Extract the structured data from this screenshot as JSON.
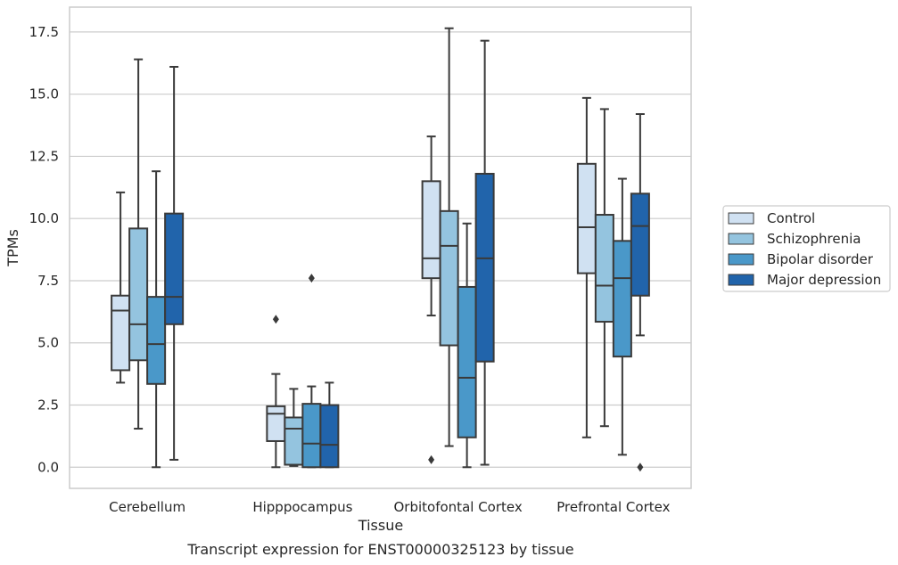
{
  "chart_data": {
    "type": "box",
    "xlabel": "Tissue",
    "ylabel": "TPMs",
    "caption": "Transcript expression for ENST00000325123 by tissue",
    "categories": [
      "Cerebellum",
      "Hipppocampus",
      "Orbitofontal Cortex",
      "Prefrontal Cortex"
    ],
    "ylim": [
      -0.85,
      18.5
    ],
    "yticks": [
      "0.0",
      "2.5",
      "5.0",
      "7.5",
      "10.0",
      "12.5",
      "15.0",
      "17.5"
    ],
    "ytick_values": [
      0,
      2.5,
      5,
      7.5,
      10,
      12.5,
      15,
      17.5
    ],
    "grid": true,
    "legend_position": "right",
    "series": [
      {
        "name": "Control",
        "color": "#d0e1f2",
        "boxes": [
          {
            "whislo": 3.4,
            "q1": 3.9,
            "med": 6.3,
            "q3": 6.9,
            "whishi": 11.05,
            "fliers": []
          },
          {
            "whislo": 0.0,
            "q1": 1.05,
            "med": 2.15,
            "q3": 2.45,
            "whishi": 3.75,
            "fliers": [
              5.95
            ]
          },
          {
            "whislo": 6.1,
            "q1": 7.6,
            "med": 8.4,
            "q3": 11.5,
            "whishi": 13.3,
            "fliers": [
              0.3
            ]
          },
          {
            "whislo": 1.2,
            "q1": 7.8,
            "med": 9.65,
            "q3": 12.2,
            "whishi": 14.85,
            "fliers": []
          }
        ]
      },
      {
        "name": "Schizophrenia",
        "color": "#94c4df",
        "boxes": [
          {
            "whislo": 1.55,
            "q1": 4.3,
            "med": 5.75,
            "q3": 9.6,
            "whishi": 16.4,
            "fliers": []
          },
          {
            "whislo": 0.05,
            "q1": 0.1,
            "med": 1.55,
            "q3": 2.0,
            "whishi": 3.15,
            "fliers": []
          },
          {
            "whislo": 0.85,
            "q1": 4.9,
            "med": 8.9,
            "q3": 10.3,
            "whishi": 17.65,
            "fliers": []
          },
          {
            "whislo": 1.65,
            "q1": 5.85,
            "med": 7.3,
            "q3": 10.15,
            "whishi": 14.4,
            "fliers": []
          }
        ]
      },
      {
        "name": "Bipolar disorder",
        "color": "#4a98c9",
        "boxes": [
          {
            "whislo": 0.0,
            "q1": 3.35,
            "med": 4.95,
            "q3": 6.85,
            "whishi": 11.9,
            "fliers": []
          },
          {
            "whislo": 0.0,
            "q1": 0.0,
            "med": 0.95,
            "q3": 2.55,
            "whishi": 3.25,
            "fliers": [
              7.6
            ]
          },
          {
            "whislo": 0.0,
            "q1": 1.2,
            "med": 3.6,
            "q3": 7.25,
            "whishi": 9.8,
            "fliers": []
          },
          {
            "whislo": 0.5,
            "q1": 4.45,
            "med": 7.6,
            "q3": 9.1,
            "whishi": 11.6,
            "fliers": []
          }
        ]
      },
      {
        "name": "Major depression",
        "color": "#2164ab",
        "boxes": [
          {
            "whislo": 0.3,
            "q1": 5.75,
            "med": 6.85,
            "q3": 10.2,
            "whishi": 16.1,
            "fliers": []
          },
          {
            "whislo": 0.0,
            "q1": 0.0,
            "med": 0.9,
            "q3": 2.5,
            "whishi": 3.4,
            "fliers": []
          },
          {
            "whislo": 0.1,
            "q1": 4.25,
            "med": 8.4,
            "q3": 11.8,
            "whishi": 17.15,
            "fliers": []
          },
          {
            "whislo": 5.3,
            "q1": 6.9,
            "med": 9.7,
            "q3": 11.0,
            "whishi": 14.2,
            "fliers": [
              0.0
            ]
          }
        ]
      }
    ]
  },
  "styles": {
    "grid_color": "#cccccc",
    "line_color": "#3a3a3a",
    "frame_color": "#cccccc"
  }
}
